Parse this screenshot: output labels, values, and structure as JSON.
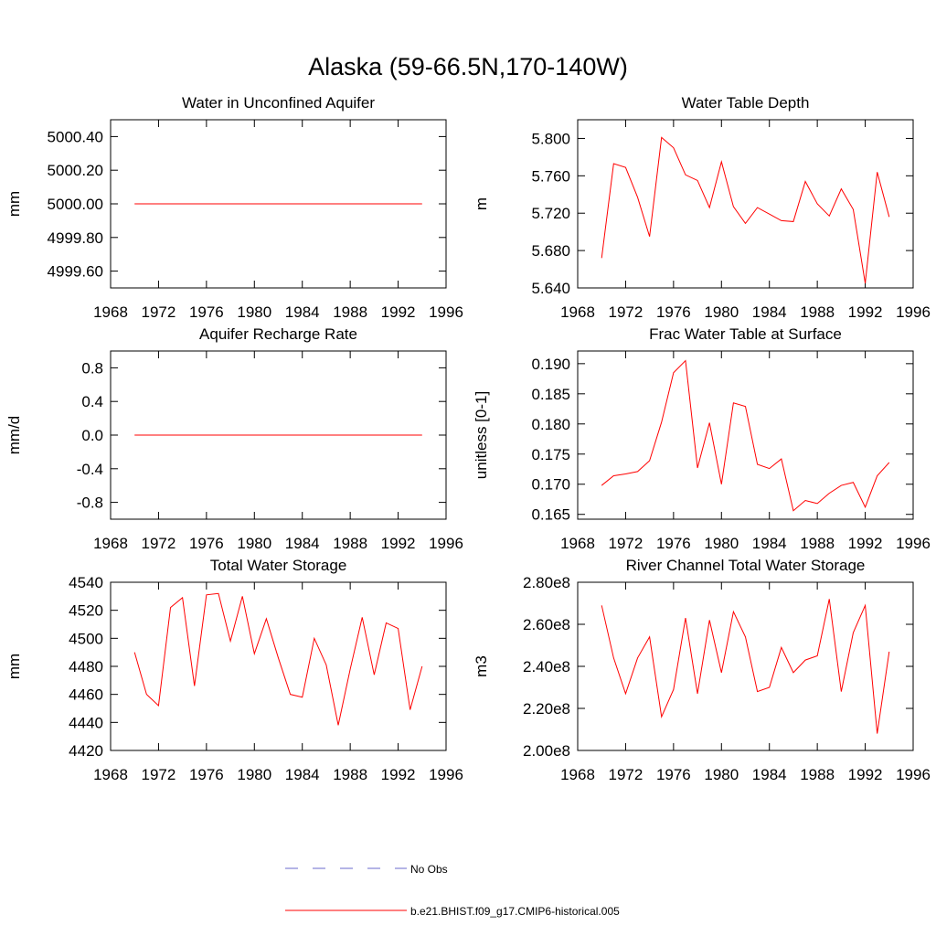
{
  "title": "Alaska (59-66.5N,170-140W)",
  "legend": [
    {
      "name": "No Obs",
      "color": "#6a6acd",
      "dash": true
    },
    {
      "name": "b.e21.BHIST.f09_g17.CMIP6-historical.005",
      "color": "#ff0000",
      "dash": false
    }
  ],
  "chart_data": [
    {
      "type": "line",
      "title": "Water in Unconfined Aquifer",
      "y_label": "mm",
      "color": "#ff0000",
      "x": [
        1970,
        1971,
        1972,
        1973,
        1974,
        1975,
        1976,
        1977,
        1978,
        1979,
        1980,
        1981,
        1982,
        1983,
        1984,
        1985,
        1986,
        1987,
        1988,
        1989,
        1990,
        1991,
        1992,
        1993,
        1994
      ],
      "values": [
        5000,
        5000,
        5000,
        5000,
        5000,
        5000,
        5000,
        5000,
        5000,
        5000,
        5000,
        5000,
        5000,
        5000,
        5000,
        5000,
        5000,
        5000,
        5000,
        5000,
        5000,
        5000,
        5000,
        5000,
        5000
      ],
      "xlim": [
        1968,
        1996
      ],
      "xticks": [
        1968,
        1972,
        1976,
        1980,
        1984,
        1988,
        1992,
        1996
      ],
      "ylim": [
        4999.5,
        5000.5
      ],
      "yticks": [
        {
          "value": 4999.6,
          "label": "4999.60"
        },
        {
          "value": 4999.8,
          "label": "4999.80"
        },
        {
          "value": 5000,
          "label": "5000.00"
        },
        {
          "value": 5000.2,
          "label": "5000.20"
        },
        {
          "value": 5000.4,
          "label": "5000.40"
        }
      ]
    },
    {
      "type": "line",
      "title": "Water Table Depth",
      "y_label": "m",
      "color": "#ff0000",
      "x": [
        1970,
        1971,
        1972,
        1973,
        1974,
        1975,
        1976,
        1977,
        1978,
        1979,
        1980,
        1981,
        1982,
        1983,
        1984,
        1985,
        1986,
        1987,
        1988,
        1989,
        1990,
        1991,
        1992,
        1993,
        1994
      ],
      "values": [
        5.672,
        5.773,
        5.769,
        5.737,
        5.695,
        5.801,
        5.79,
        5.761,
        5.755,
        5.726,
        5.775,
        5.727,
        5.709,
        5.726,
        5.719,
        5.712,
        5.711,
        5.754,
        5.73,
        5.717,
        5.746,
        5.724,
        5.645,
        5.764,
        5.716
      ],
      "xlim": [
        1968,
        1996
      ],
      "xticks": [
        1968,
        1972,
        1976,
        1980,
        1984,
        1988,
        1992,
        1996
      ],
      "ylim": [
        5.64,
        5.82
      ],
      "yticks": [
        {
          "value": 5.64,
          "label": "5.640"
        },
        {
          "value": 5.68,
          "label": "5.680"
        },
        {
          "value": 5.72,
          "label": "5.720"
        },
        {
          "value": 5.76,
          "label": "5.760"
        },
        {
          "value": 5.8,
          "label": "5.800"
        }
      ]
    },
    {
      "type": "line",
      "title": "Aquifer Recharge Rate",
      "y_label": "mm/d",
      "color": "#ff0000",
      "x": [
        1970,
        1971,
        1972,
        1973,
        1974,
        1975,
        1976,
        1977,
        1978,
        1979,
        1980,
        1981,
        1982,
        1983,
        1984,
        1985,
        1986,
        1987,
        1988,
        1989,
        1990,
        1991,
        1992,
        1993,
        1994
      ],
      "values": [
        0,
        0,
        0,
        0,
        0,
        0,
        0,
        0,
        0,
        0,
        0,
        0,
        0,
        0,
        0,
        0,
        0,
        0,
        0,
        0,
        0,
        0,
        0,
        0,
        0
      ],
      "xlim": [
        1968,
        1996
      ],
      "xticks": [
        1968,
        1972,
        1976,
        1980,
        1984,
        1988,
        1992,
        1996
      ],
      "ylim": [
        -1,
        1
      ],
      "yticks": [
        -0.8,
        -0.4,
        {
          "value": 0,
          "label": "0.0"
        },
        0.4,
        0.8
      ]
    },
    {
      "type": "line",
      "title": "Frac Water Table at Surface",
      "y_label": "unitless [0-1]",
      "color": "#ff0000",
      "x": [
        1970,
        1971,
        1972,
        1973,
        1974,
        1975,
        1976,
        1977,
        1978,
        1979,
        1980,
        1981,
        1982,
        1983,
        1984,
        1985,
        1986,
        1987,
        1988,
        1989,
        1990,
        1991,
        1992,
        1993,
        1994
      ],
      "values": [
        0.1698,
        0.1714,
        0.1717,
        0.1721,
        0.1739,
        0.1803,
        0.1885,
        0.1905,
        0.1727,
        0.1802,
        0.17,
        0.1835,
        0.1829,
        0.1733,
        0.1726,
        0.1742,
        0.1656,
        0.1673,
        0.1668,
        0.1685,
        0.1698,
        0.1703,
        0.1662,
        0.1714,
        0.1736
      ],
      "xlim": [
        1968,
        1996
      ],
      "xticks": [
        1968,
        1972,
        1976,
        1980,
        1984,
        1988,
        1992,
        1996
      ],
      "ylim": [
        0.1642,
        0.1921
      ],
      "yticks": [
        0.165,
        {
          "value": 0.17,
          "label": "0.170"
        },
        0.175,
        {
          "value": 0.18,
          "label": "0.180"
        },
        0.185,
        {
          "value": 0.19,
          "label": "0.190"
        }
      ]
    },
    {
      "type": "line",
      "title": "Total Water Storage",
      "y_label": "mm",
      "color": "#ff0000",
      "x": [
        1970,
        1971,
        1972,
        1973,
        1974,
        1975,
        1976,
        1977,
        1978,
        1979,
        1980,
        1981,
        1982,
        1983,
        1984,
        1985,
        1986,
        1987,
        1988,
        1989,
        1990,
        1991,
        1992,
        1993,
        1994
      ],
      "values": [
        4490,
        4460,
        4452,
        4522,
        4529,
        4466,
        4531,
        4532,
        4498,
        4530,
        4489,
        4514,
        4486,
        4460,
        4458,
        4500,
        4481,
        4438,
        4478,
        4515,
        4474,
        4511,
        4507,
        4449,
        4480
      ],
      "xlim": [
        1968,
        1996
      ],
      "xticks": [
        1968,
        1972,
        1976,
        1980,
        1984,
        1988,
        1992,
        1996
      ],
      "ylim": [
        4420,
        4540
      ],
      "yticks": [
        4420,
        4440,
        4460,
        4480,
        4500,
        4520,
        4540
      ]
    },
    {
      "type": "line",
      "title": "River Channel Total Water Storage",
      "y_label": "m3",
      "color": "#ff0000",
      "x": [
        1970,
        1971,
        1972,
        1973,
        1974,
        1975,
        1976,
        1977,
        1978,
        1979,
        1980,
        1981,
        1982,
        1983,
        1984,
        1985,
        1986,
        1987,
        1988,
        1989,
        1990,
        1991,
        1992,
        1993,
        1994
      ],
      "values": [
        269000000,
        244000000,
        227000000,
        244000000,
        254000000,
        216000000,
        229000000,
        263000000,
        227000000,
        262000000,
        237000000,
        266000000,
        254000000,
        228000000,
        230000000,
        249000000,
        237000000,
        243000000,
        245000000,
        272000000,
        228000000,
        256000000,
        269000000,
        208000000,
        247000000
      ],
      "xlim": [
        1968,
        1996
      ],
      "xticks": [
        1968,
        1972,
        1976,
        1980,
        1984,
        1988,
        1992,
        1996
      ],
      "ylim": [
        200000000,
        280000000
      ],
      "yticks": [
        {
          "value": 200000000,
          "label": "2.00e8"
        },
        {
          "value": 220000000,
          "label": "2.20e8"
        },
        {
          "value": 240000000,
          "label": "2.40e8"
        },
        {
          "value": 260000000,
          "label": "2.60e8"
        },
        {
          "value": 280000000,
          "label": "2.80e8"
        }
      ]
    }
  ]
}
